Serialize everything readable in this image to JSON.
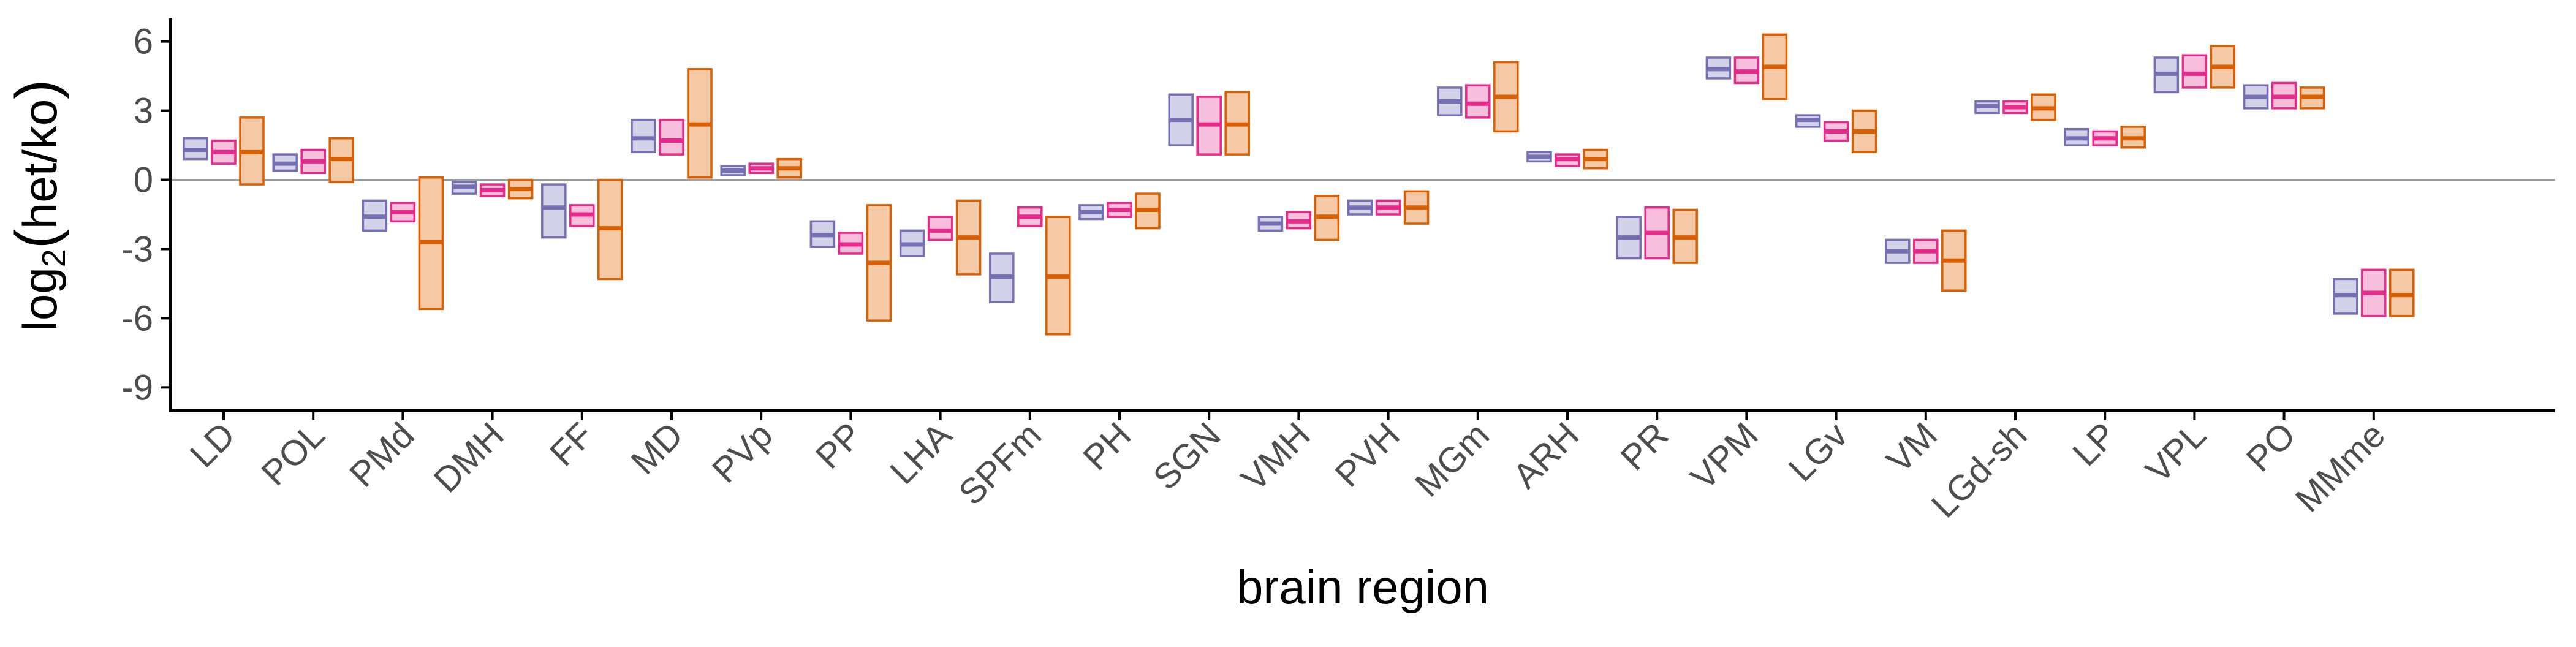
{
  "chart_data": {
    "type": "floating-bar",
    "xlabel": "brain region",
    "ylabel_text": "log",
    "ylabel_subscript": "2",
    "ylabel_paren_open": "(",
    "ylabel_inner": "het/ko",
    "ylabel_paren_close": ")",
    "ylim": [
      -10.0,
      7.0
    ],
    "yticks": [
      6,
      3,
      0,
      -3,
      -6,
      -9
    ],
    "ytick_labels": [
      "6",
      "3",
      "0",
      "-3",
      "-6",
      "-9"
    ],
    "zero_line": true,
    "grid": false,
    "legend": "none",
    "categories": [
      "LD",
      "POL",
      "PMd",
      "DMH",
      "FF",
      "MD",
      "PVp",
      "PP",
      "LHA",
      "SPFm",
      "PH",
      "SGN",
      "VMH",
      "PVH",
      "MGm",
      "ARH",
      "PR",
      "VPM",
      "LGv",
      "VM",
      "LGd-sh",
      "LP",
      "VPL",
      "PO",
      "MMme"
    ],
    "series": [
      {
        "color": "#7570b3",
        "fill": "#d4d2e9",
        "values": [
          {
            "low": 0.9,
            "mid": 1.3,
            "high": 1.8
          },
          {
            "low": 0.4,
            "mid": 0.7,
            "high": 1.1
          },
          {
            "low": -2.2,
            "mid": -1.6,
            "high": -0.9
          },
          {
            "low": -0.6,
            "mid": -0.3,
            "high": -0.1
          },
          {
            "low": -2.5,
            "mid": -1.2,
            "high": -0.2
          },
          {
            "low": 1.2,
            "mid": 1.8,
            "high": 2.6
          },
          {
            "low": 0.2,
            "mid": 0.4,
            "high": 0.6
          },
          {
            "low": -2.9,
            "mid": -2.4,
            "high": -1.8
          },
          {
            "low": -3.3,
            "mid": -2.8,
            "high": -2.2
          },
          {
            "low": -5.3,
            "mid": -4.2,
            "high": -3.2
          },
          {
            "low": -1.7,
            "mid": -1.4,
            "high": -1.1
          },
          {
            "low": 1.5,
            "mid": 2.6,
            "high": 3.7
          },
          {
            "low": -2.2,
            "mid": -1.9,
            "high": -1.6
          },
          {
            "low": -1.5,
            "mid": -1.2,
            "high": -0.9
          },
          {
            "low": 2.8,
            "mid": 3.4,
            "high": 4.0
          },
          {
            "low": 0.8,
            "mid": 1.0,
            "high": 1.2
          },
          {
            "low": -3.4,
            "mid": -2.5,
            "high": -1.6
          },
          {
            "low": 4.4,
            "mid": 4.8,
            "high": 5.3
          },
          {
            "low": 2.3,
            "mid": 2.6,
            "high": 2.8
          },
          {
            "low": -3.6,
            "mid": -3.1,
            "high": -2.6
          },
          {
            "low": 2.9,
            "mid": 3.2,
            "high": 3.4
          },
          {
            "low": 1.5,
            "mid": 1.8,
            "high": 2.2
          },
          {
            "low": 3.8,
            "mid": 4.6,
            "high": 5.3
          },
          {
            "low": 3.1,
            "mid": 3.6,
            "high": 4.1
          },
          {
            "low": -5.8,
            "mid": -5.0,
            "high": -4.3
          }
        ]
      },
      {
        "color": "#e7298a",
        "fill": "#f7bfdb",
        "values": [
          {
            "low": 0.7,
            "mid": 1.2,
            "high": 1.7
          },
          {
            "low": 0.3,
            "mid": 0.8,
            "high": 1.3
          },
          {
            "low": -1.8,
            "mid": -1.4,
            "high": -1.0
          },
          {
            "low": -0.7,
            "mid": -0.45,
            "high": -0.2
          },
          {
            "low": -2.0,
            "mid": -1.5,
            "high": -1.1
          },
          {
            "low": 1.1,
            "mid": 1.7,
            "high": 2.6
          },
          {
            "low": 0.3,
            "mid": 0.5,
            "high": 0.7
          },
          {
            "low": -3.2,
            "mid": -2.8,
            "high": -2.3
          },
          {
            "low": -2.6,
            "mid": -2.2,
            "high": -1.6
          },
          {
            "low": -2.0,
            "mid": -1.6,
            "high": -1.2
          },
          {
            "low": -1.6,
            "mid": -1.3,
            "high": -1.0
          },
          {
            "low": 1.1,
            "mid": 2.4,
            "high": 3.6
          },
          {
            "low": -2.1,
            "mid": -1.8,
            "high": -1.4
          },
          {
            "low": -1.5,
            "mid": -1.2,
            "high": -0.9
          },
          {
            "low": 2.7,
            "mid": 3.3,
            "high": 4.1
          },
          {
            "low": 0.6,
            "mid": 0.9,
            "high": 1.1
          },
          {
            "low": -3.4,
            "mid": -2.3,
            "high": -1.2
          },
          {
            "low": 4.2,
            "mid": 4.7,
            "high": 5.3
          },
          {
            "low": 1.7,
            "mid": 2.1,
            "high": 2.5
          },
          {
            "low": -3.6,
            "mid": -3.1,
            "high": -2.6
          },
          {
            "low": 2.9,
            "mid": 3.15,
            "high": 3.4
          },
          {
            "low": 1.5,
            "mid": 1.8,
            "high": 2.1
          },
          {
            "low": 4.0,
            "mid": 4.6,
            "high": 5.4
          },
          {
            "low": 3.1,
            "mid": 3.6,
            "high": 4.2
          },
          {
            "low": -5.9,
            "mid": -4.9,
            "high": -3.9
          }
        ]
      },
      {
        "color": "#d95f02",
        "fill": "#f6c9a6",
        "values": [
          {
            "low": -0.2,
            "mid": 1.2,
            "high": 2.7
          },
          {
            "low": -0.1,
            "mid": 0.9,
            "high": 1.8
          },
          {
            "low": -5.6,
            "mid": -2.7,
            "high": 0.1
          },
          {
            "low": -0.8,
            "mid": -0.4,
            "high": 0.0
          },
          {
            "low": -4.3,
            "mid": -2.1,
            "high": 0.0
          },
          {
            "low": 0.1,
            "mid": 2.4,
            "high": 4.8
          },
          {
            "low": 0.1,
            "mid": 0.5,
            "high": 0.9
          },
          {
            "low": -6.1,
            "mid": -3.6,
            "high": -1.1
          },
          {
            "low": -4.1,
            "mid": -2.5,
            "high": -0.9
          },
          {
            "low": -6.7,
            "mid": -4.2,
            "high": -1.6
          },
          {
            "low": -2.1,
            "mid": -1.3,
            "high": -0.6
          },
          {
            "low": 1.1,
            "mid": 2.4,
            "high": 3.8
          },
          {
            "low": -2.6,
            "mid": -1.6,
            "high": -0.7
          },
          {
            "low": -1.9,
            "mid": -1.2,
            "high": -0.5
          },
          {
            "low": 2.1,
            "mid": 3.6,
            "high": 5.1
          },
          {
            "low": 0.5,
            "mid": 0.9,
            "high": 1.3
          },
          {
            "low": -3.6,
            "mid": -2.5,
            "high": -1.3
          },
          {
            "low": 3.5,
            "mid": 4.9,
            "high": 6.3
          },
          {
            "low": 1.2,
            "mid": 2.1,
            "high": 3.0
          },
          {
            "low": -4.8,
            "mid": -3.5,
            "high": -2.2
          },
          {
            "low": 2.6,
            "mid": 3.1,
            "high": 3.7
          },
          {
            "low": 1.4,
            "mid": 1.8,
            "high": 2.3
          },
          {
            "low": 4.0,
            "mid": 4.9,
            "high": 5.8
          },
          {
            "low": 3.1,
            "mid": 3.6,
            "high": 4.0
          },
          {
            "low": -5.9,
            "mid": -5.0,
            "high": -3.9
          }
        ]
      }
    ]
  },
  "colors": {
    "axis": "#000000",
    "zero_line": "#9a9a9a",
    "tick_text": "#4d4d4d"
  }
}
